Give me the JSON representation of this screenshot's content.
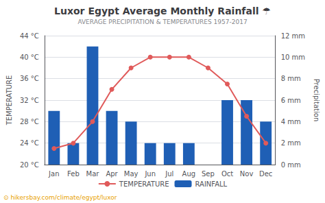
{
  "chart_data": {
    "type": "bar",
    "title": "Luxor Egypt Average Monthly Rainfall ☂",
    "subtitle": "AVERAGE PRECIPITATION & TEMPERATURES 1957-2017",
    "annotations": [
      "⊙ hikersbay.com/climate/egypt/luxor"
    ],
    "categories": [
      "Jan",
      "Feb",
      "Mar",
      "Apr",
      "May",
      "Jun",
      "Jul",
      "Aug",
      "Sep",
      "Oct",
      "Nov",
      "Dec"
    ],
    "series": [
      {
        "name": "TEMPERATURE",
        "type": "line",
        "marker": "circle",
        "color": "#e05a5a",
        "values": [
          23,
          24,
          28,
          34,
          38,
          40,
          40,
          40,
          38,
          35,
          29,
          24
        ]
      },
      {
        "name": "RAINFALL",
        "type": "bar",
        "axis": "y2",
        "color": "#1f5fb5",
        "values": [
          5,
          2,
          11,
          5,
          4,
          2,
          2,
          2,
          0,
          6,
          6,
          4
        ]
      }
    ],
    "ylabel": "TEMPERATURE",
    "y2label": "Precipitation",
    "ylim": [
      20,
      44
    ],
    "yticks": [
      {
        "value": 20,
        "label": "20 °C"
      },
      {
        "value": 24,
        "label": "24 °C"
      },
      {
        "value": 28,
        "label": "28 °C"
      },
      {
        "value": 32,
        "label": "32 °C"
      },
      {
        "value": 36,
        "label": "36 °C"
      },
      {
        "value": 40,
        "label": "40 °C"
      },
      {
        "value": 44,
        "label": "44 °C"
      }
    ],
    "y2lim": [
      0,
      12
    ],
    "y2ticks": [
      {
        "value": 0,
        "label": "0 mm"
      },
      {
        "value": 2,
        "label": "2 mm"
      },
      {
        "value": 4,
        "label": "4 mm"
      },
      {
        "value": 6,
        "label": "6 mm"
      },
      {
        "value": 8,
        "label": "8 mm"
      },
      {
        "value": 10,
        "label": "10 mm"
      },
      {
        "value": 12,
        "label": "12 mm"
      }
    ],
    "grid": true,
    "legend": "bottom"
  }
}
